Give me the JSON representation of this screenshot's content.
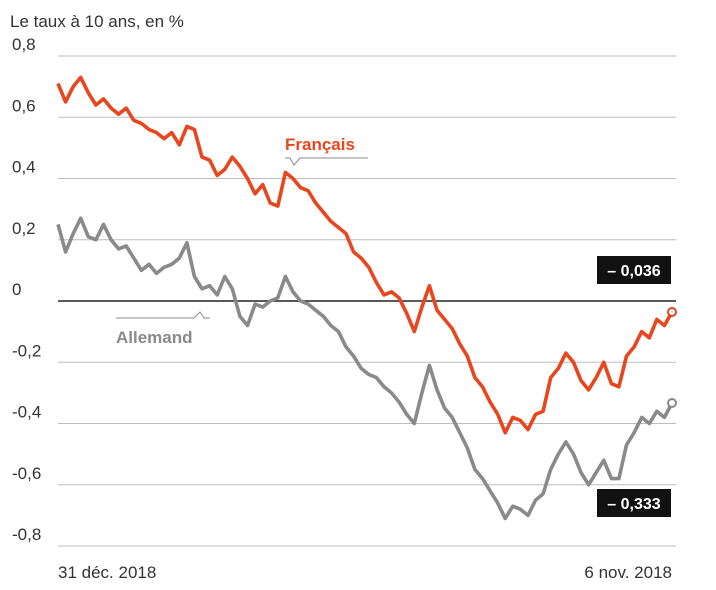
{
  "chart_data": {
    "type": "line",
    "subtitle": "Le taux à 10 ans, en %",
    "x_start_label": "31 déc. 2018",
    "x_end_label": "6 nov. 2018",
    "ylim": [
      -0.8,
      0.8
    ],
    "y_ticks": [
      "0,8",
      "0,6",
      "0,4",
      "0,2",
      "0",
      "-0,2",
      "-0,4",
      "-0,6",
      "-0,8"
    ],
    "y_tick_values": [
      0.8,
      0.6,
      0.4,
      0.2,
      0,
      -0.2,
      -0.4,
      -0.6,
      -0.8
    ],
    "grid": true,
    "colors": {
      "francais": "#e8461e",
      "allemand": "#8a8a8a",
      "zero": "#222222",
      "grid": "#bdbdbd",
      "badge": "#111111"
    },
    "series": [
      {
        "name": "Français",
        "end_label": "– 0,036",
        "values": [
          0.71,
          0.65,
          0.7,
          0.73,
          0.68,
          0.64,
          0.66,
          0.63,
          0.61,
          0.63,
          0.59,
          0.58,
          0.56,
          0.55,
          0.53,
          0.55,
          0.51,
          0.57,
          0.56,
          0.47,
          0.46,
          0.41,
          0.43,
          0.47,
          0.44,
          0.4,
          0.35,
          0.38,
          0.32,
          0.31,
          0.42,
          0.4,
          0.37,
          0.36,
          0.32,
          0.29,
          0.26,
          0.24,
          0.22,
          0.16,
          0.14,
          0.11,
          0.06,
          0.02,
          0.03,
          0.01,
          -0.04,
          -0.1,
          -0.02,
          0.05,
          -0.03,
          -0.06,
          -0.09,
          -0.14,
          -0.18,
          -0.25,
          -0.28,
          -0.33,
          -0.37,
          -0.43,
          -0.38,
          -0.39,
          -0.42,
          -0.37,
          -0.36,
          -0.25,
          -0.22,
          -0.17,
          -0.2,
          -0.26,
          -0.29,
          -0.25,
          -0.2,
          -0.27,
          -0.28,
          -0.18,
          -0.15,
          -0.1,
          -0.12,
          -0.06,
          -0.08,
          -0.036
        ]
      },
      {
        "name": "Allemand",
        "end_label": "– 0,333",
        "values": [
          0.25,
          0.16,
          0.22,
          0.27,
          0.21,
          0.2,
          0.25,
          0.2,
          0.17,
          0.18,
          0.14,
          0.1,
          0.12,
          0.09,
          0.11,
          0.12,
          0.14,
          0.19,
          0.08,
          0.04,
          0.05,
          0.02,
          0.08,
          0.04,
          -0.05,
          -0.08,
          -0.01,
          -0.02,
          0.0,
          0.01,
          0.08,
          0.03,
          0.0,
          -0.01,
          -0.03,
          -0.05,
          -0.08,
          -0.1,
          -0.15,
          -0.18,
          -0.22,
          -0.24,
          -0.25,
          -0.28,
          -0.3,
          -0.33,
          -0.37,
          -0.4,
          -0.3,
          -0.21,
          -0.29,
          -0.35,
          -0.38,
          -0.43,
          -0.48,
          -0.55,
          -0.58,
          -0.62,
          -0.66,
          -0.71,
          -0.67,
          -0.68,
          -0.7,
          -0.65,
          -0.63,
          -0.55,
          -0.5,
          -0.46,
          -0.5,
          -0.56,
          -0.6,
          -0.56,
          -0.52,
          -0.58,
          -0.58,
          -0.47,
          -0.43,
          -0.38,
          -0.4,
          -0.36,
          -0.38,
          -0.333
        ]
      }
    ]
  }
}
